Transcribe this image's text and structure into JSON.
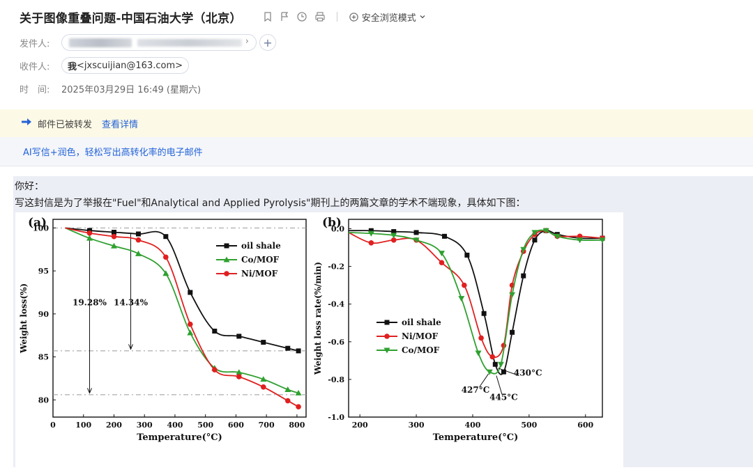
{
  "email": {
    "subject": "关于图像重叠问题-中国石油大学（北京）",
    "safe_mode_label": "安全浏览模式",
    "sender_label": "发件人:",
    "recipient_label": "收件人:",
    "recipient_me": "我",
    "recipient_address": "<jxscuijian@163.com>",
    "time_label": "时　间:",
    "time_value": "2025年03月29日 16:49 (星期六)",
    "forward_notice": "邮件已被转发",
    "forward_detail_link": "查看详情",
    "ai_promo": "AI写信+润色，轻松写出高转化率的电子邮件",
    "body_greeting": "你好：",
    "body_line": "写这封信是为了举报在\"Fuel\"和Analytical and Applied Pyrolysis\"期刊上的两篇文章的学术不端现象，具体如下图："
  },
  "colors": {
    "oil_shale": "#111111",
    "ni_mof": "#e02020",
    "co_mof": "#2fa02f",
    "link": "#2463d8"
  },
  "chart_data": [
    {
      "panel_label": "(a)",
      "type": "line",
      "xlabel": "Temperature(°C)",
      "ylabel": "Weight loss(%)",
      "xlim": [
        0,
        830
      ],
      "ylim": [
        78,
        101
      ],
      "xticks": [
        0,
        100,
        200,
        300,
        400,
        500,
        600,
        700,
        800
      ],
      "yticks": [
        80,
        85,
        90,
        95,
        100
      ],
      "legend_position": "center-right",
      "annotations": [
        {
          "text": "19.28%",
          "x": 120,
          "y": 91
        },
        {
          "text": "14.34%",
          "x": 255,
          "y": 91
        }
      ],
      "series": [
        {
          "name": "oil shale",
          "color": "#111111",
          "marker": "square",
          "x": [
            40,
            120,
            200,
            280,
            370,
            450,
            530,
            610,
            690,
            770,
            805
          ],
          "y": [
            100,
            99.7,
            99.5,
            99.3,
            99.0,
            92.5,
            88.0,
            87.4,
            86.7,
            86.0,
            85.7
          ]
        },
        {
          "name": "Co/MOF",
          "color": "#2fa02f",
          "marker": "triangle-up",
          "x": [
            40,
            120,
            200,
            280,
            370,
            450,
            530,
            610,
            690,
            770,
            805
          ],
          "y": [
            100,
            98.8,
            97.9,
            97.0,
            94.7,
            87.8,
            83.7,
            83.2,
            82.4,
            81.2,
            80.8
          ]
        },
        {
          "name": "Ni/MOF",
          "color": "#e02020",
          "marker": "circle",
          "x": [
            40,
            120,
            200,
            280,
            370,
            450,
            530,
            610,
            690,
            770,
            805
          ],
          "y": [
            100,
            99.4,
            99.0,
            98.6,
            96.6,
            88.8,
            83.5,
            82.7,
            81.5,
            79.9,
            79.2
          ]
        }
      ]
    },
    {
      "panel_label": "(b)",
      "type": "line",
      "xlabel": "Temperature(°C)",
      "ylabel": "Weight loss rate(%/min)",
      "xlim": [
        180,
        630
      ],
      "ylim": [
        -1.0,
        0.05
      ],
      "xticks": [
        200,
        300,
        400,
        500,
        600
      ],
      "yticks": [
        0.0,
        -0.2,
        -0.4,
        -0.6,
        -0.8,
        -1.0
      ],
      "legend_position": "lower-left",
      "annotations": [
        {
          "text": "427°C",
          "x": 405,
          "y": -0.87
        },
        {
          "text": "445°C",
          "x": 455,
          "y": -0.91
        },
        {
          "text": "430°C",
          "x": 498,
          "y": -0.78
        }
      ],
      "series": [
        {
          "name": "oil shale",
          "color": "#111111",
          "marker": "square",
          "x": [
            180,
            220,
            260,
            300,
            350,
            390,
            420,
            440,
            455,
            470,
            490,
            510,
            530,
            550,
            590,
            630
          ],
          "y": [
            -0.01,
            -0.01,
            -0.015,
            -0.02,
            -0.04,
            -0.14,
            -0.45,
            -0.72,
            -0.76,
            -0.55,
            -0.25,
            -0.06,
            -0.01,
            -0.03,
            -0.05,
            -0.05
          ]
        },
        {
          "name": "Ni/MOF",
          "color": "#e02020",
          "marker": "circle",
          "x": [
            180,
            220,
            260,
            300,
            345,
            385,
            415,
            435,
            455,
            470,
            490,
            510,
            530,
            550,
            590,
            630
          ],
          "y": [
            -0.02,
            -0.075,
            -0.06,
            -0.06,
            -0.18,
            -0.3,
            -0.58,
            -0.68,
            -0.62,
            -0.3,
            -0.12,
            -0.03,
            -0.01,
            -0.04,
            -0.04,
            -0.05
          ]
        },
        {
          "name": "Co/MOF",
          "color": "#2fa02f",
          "marker": "triangle-down",
          "x": [
            180,
            220,
            260,
            300,
            345,
            380,
            410,
            430,
            450,
            470,
            490,
            510,
            530,
            550,
            590,
            630
          ],
          "y": [
            -0.02,
            -0.025,
            -0.035,
            -0.06,
            -0.13,
            -0.37,
            -0.66,
            -0.76,
            -0.72,
            -0.35,
            -0.11,
            -0.02,
            -0.01,
            -0.04,
            -0.06,
            -0.06
          ]
        }
      ]
    }
  ]
}
